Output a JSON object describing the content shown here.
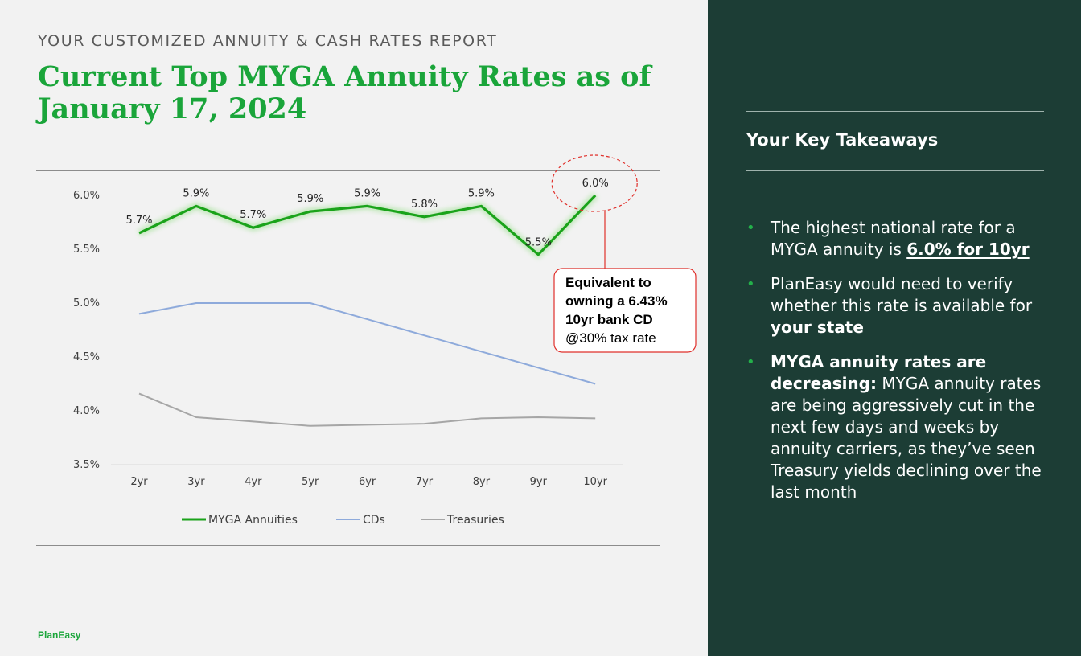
{
  "header": {
    "kicker": "YOUR CUSTOMIZED ANNUITY & CASH RATES REPORT",
    "title": "Current Top MYGA Annuity Rates as of January 17, 2024"
  },
  "brand": "PlanEasy",
  "colors": {
    "myga": "#1aa31a",
    "cds": "#8eaadb",
    "treasuries": "#a6a6a6",
    "annotation": "#e0302b",
    "panel_bg": "#1c3d35",
    "accent": "#1aa53a"
  },
  "chart_data": {
    "type": "line",
    "categories": [
      "2yr",
      "3yr",
      "4yr",
      "5yr",
      "6yr",
      "7yr",
      "8yr",
      "9yr",
      "10yr"
    ],
    "ylim": [
      3.5,
      6.0
    ],
    "yticks": [
      "3.5%",
      "4.0%",
      "4.5%",
      "5.0%",
      "5.5%",
      "6.0%"
    ],
    "grid": false,
    "legend": "bottom",
    "series": [
      {
        "name": "MYGA Annuities",
        "values": [
          5.65,
          5.9,
          5.7,
          5.85,
          5.9,
          5.8,
          5.9,
          5.45,
          6.0
        ],
        "labels": [
          "5.7%",
          "5.9%",
          "5.7%",
          "5.9%",
          "5.9%",
          "5.8%",
          "5.9%",
          "5.5%",
          "6.0%"
        ]
      },
      {
        "name": "CDs",
        "values": [
          4.9,
          5.0,
          5.0,
          5.0,
          4.85,
          4.7,
          4.55,
          4.4,
          4.25
        ]
      },
      {
        "name": "Treasuries",
        "values": [
          4.16,
          3.94,
          3.9,
          3.86,
          3.87,
          3.88,
          3.93,
          3.94,
          3.93
        ]
      }
    ],
    "annotation": {
      "lines": [
        "Equivalent to",
        "owning a 6.43%",
        "10yr bank CD",
        "@30% tax rate"
      ]
    }
  },
  "panel": {
    "title": "Your Key Takeaways",
    "bullet_glyph": "•",
    "items": [
      {
        "text": "The highest national rate for a MYGA annuity is ",
        "highlight": "6.0% for 10yr"
      },
      {
        "text": "PlanEasy would need to verify whether this rate is available for ",
        "bold": "your state"
      },
      {
        "bold": "MYGA annuity rates are decreasing:",
        "text": "  MYGA annuity rates are being aggressively cut in the next few days and weeks by annuity carriers, as they’ve seen Treasury yields declining over the last month"
      }
    ]
  }
}
